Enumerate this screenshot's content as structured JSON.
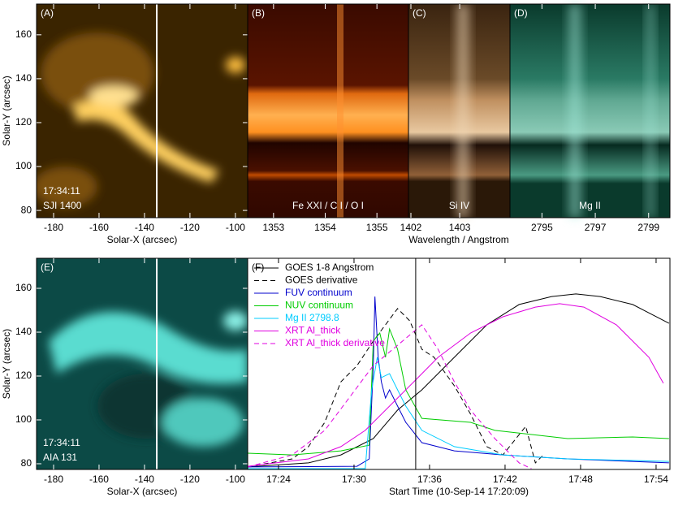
{
  "chart_data": [
    {
      "type": "image",
      "label": "(A)",
      "annotations": [
        "17:34:11",
        "SJI 1400"
      ],
      "annotation_position": "bottom-left",
      "xlabel": "Solar-X (arcsec)",
      "ylabel": "Solar-Y (arcsec)",
      "xlim": [
        -187.5,
        -94.6
      ],
      "ylim": [
        76.7,
        174
      ],
      "xticks": [
        -180,
        -160,
        -140,
        -120,
        -100
      ],
      "yticks": [
        80,
        100,
        120,
        140,
        160
      ],
      "cursor_x": -134.6,
      "text_color": "#ffffff"
    },
    {
      "type": "image",
      "label": "(B)",
      "annotations": [
        "Fe XXI / C I / O I"
      ],
      "annotation_position": "bottom-center",
      "xlabel": "Wavelength / Angstrom",
      "xlim": [
        1352.5,
        1355.61
      ],
      "xticks": [
        1353,
        1354,
        1355
      ],
      "text_color": "#ffffff"
    },
    {
      "type": "image",
      "label": "(C)",
      "annotations": [
        "Si IV"
      ],
      "annotation_position": "bottom-center",
      "xlim": [
        1401.95,
        1404.03
      ],
      "xticks": [
        1402,
        1403
      ],
      "text_color": "#ffffff"
    },
    {
      "type": "image",
      "label": "(D)",
      "annotations": [
        "Mg II"
      ],
      "annotation_position": "bottom-center",
      "xlim": [
        2793.8,
        2799.8
      ],
      "xticks": [
        2795,
        2797,
        2799
      ],
      "text_color": "#ffffff"
    },
    {
      "type": "image",
      "label": "(E)",
      "annotations": [
        "17:34:11",
        "AIA 131"
      ],
      "annotation_position": "bottom-left",
      "xlabel": "Solar-X (arcsec)",
      "ylabel": "Solar-Y (arcsec)",
      "xlim": [
        -187.5,
        -94.6
      ],
      "ylim": [
        77.4,
        173.7
      ],
      "xticks": [
        -180,
        -160,
        -140,
        -120,
        -100
      ],
      "yticks": [
        80,
        100,
        120,
        140,
        160
      ],
      "cursor_x": -134.6,
      "text_color": "#ffffff"
    },
    {
      "type": "line",
      "label": "(F)",
      "xlabel": "Start Time (10-Sep-14 17:20:09)",
      "xlim": [
        21.55,
        55.1
      ],
      "ylim": [
        0,
        100
      ],
      "xticks": [
        {
          "value": 24,
          "label": "17:24"
        },
        {
          "value": 30,
          "label": "17:30"
        },
        {
          "value": 36,
          "label": "17:36"
        },
        {
          "value": 42,
          "label": "17:42"
        },
        {
          "value": 48,
          "label": "17:48"
        },
        {
          "value": 54,
          "label": "17:54"
        }
      ],
      "cursor_x": 34.9,
      "legend": "top-left",
      "text_color": "#000000",
      "series": [
        {
          "name": "GOES 1-8 Angstrom",
          "color": "#000000",
          "dash": false,
          "x": [
            21.55,
            26.38,
            28.96,
            31.53,
            33.46,
            35.39,
            37.97,
            40.55,
            43.12,
            45.7,
            47.63,
            49.56,
            52.14,
            55.03
          ],
          "values": [
            1.2,
            3.1,
            6.9,
            14.6,
            28.1,
            37.7,
            53.1,
            68.5,
            78.1,
            81.9,
            83.1,
            81.9,
            78.1,
            69.2
          ]
        },
        {
          "name": "GOES derivative",
          "color": "#000000",
          "dash": true,
          "x": [
            21.55,
            25.09,
            26.38,
            27.67,
            28.96,
            30.24,
            31.53,
            32.5,
            33.46,
            34.43,
            35.39,
            36.36,
            37.97,
            39.26,
            40.55,
            41.83,
            43.64,
            44.41,
            45.05
          ],
          "values": [
            1.2,
            5,
            10.8,
            22.3,
            41.5,
            49.2,
            60.8,
            68.5,
            76.2,
            70.4,
            56.9,
            53.1,
            39.6,
            26.2,
            10.8,
            6.9,
            20.4,
            3.1,
            6.9
          ]
        },
        {
          "name": "FUV continuum",
          "color": "#0000cc",
          "dash": false,
          "x": [
            21.55,
            30.24,
            31.21,
            31.53,
            31.66,
            31.92,
            32.17,
            32.5,
            32.82,
            33.46,
            34.11,
            35.39,
            37.97,
            41.83,
            46.98,
            55.03
          ],
          "values": [
            1.2,
            1.5,
            5,
            49.2,
            81.9,
            53.1,
            41.5,
            33.8,
            37.7,
            30,
            22.3,
            12.7,
            8.8,
            6.9,
            5,
            3.1
          ]
        },
        {
          "name": "NUV continuum",
          "color": "#00cc00",
          "dash": false,
          "x": [
            21.55,
            25.09,
            28.96,
            31.21,
            31.53,
            32.05,
            32.5,
            32.82,
            33.46,
            34.11,
            35.39,
            39.26,
            41.19,
            46.98,
            52.14,
            55.03
          ],
          "values": [
            7.7,
            6.9,
            8.8,
            11.5,
            60.8,
            64.6,
            53.1,
            66.5,
            56.9,
            37.7,
            24.2,
            22.3,
            18.5,
            14.6,
            15.4,
            14.6
          ]
        },
        {
          "name": "Mg II 2798.8",
          "color": "#00ccff",
          "dash": false,
          "x": [
            21.55,
            30.89,
            31.4,
            31.85,
            32.17,
            32.82,
            33.46,
            34.11,
            35.39,
            37.97,
            41.83,
            46.98,
            55.03
          ],
          "values": [
            0.4,
            0.4,
            37.7,
            53.1,
            43.5,
            45.4,
            37.7,
            30,
            18.5,
            10.8,
            6.9,
            5,
            3.8
          ]
        },
        {
          "name": "XRT Al_thick",
          "color": "#e000e0",
          "dash": false,
          "x": [
            21.55,
            26.38,
            28.96,
            30.89,
            32.82,
            34.75,
            36.68,
            39.26,
            41.83,
            44.41,
            46.34,
            48.27,
            50.84,
            53.43,
            54.58
          ],
          "values": [
            1.5,
            5,
            10.8,
            18.5,
            30,
            41.5,
            53.1,
            64.6,
            72.3,
            76.9,
            78.5,
            76.9,
            68.5,
            53.1,
            40.8
          ]
        },
        {
          "name": "XRT Al_thick derivative",
          "color": "#e000e0",
          "dash": true,
          "x": [
            21.55,
            25.09,
            27.67,
            29.6,
            31.53,
            33.46,
            35.39,
            36.68,
            37.97,
            39.26,
            41.19,
            43.12,
            44.09
          ],
          "values": [
            1.2,
            6.9,
            18.5,
            33.8,
            49.2,
            58.8,
            68.5,
            56.9,
            41.5,
            28.1,
            14.6,
            3.1,
            0.4
          ]
        }
      ]
    }
  ]
}
